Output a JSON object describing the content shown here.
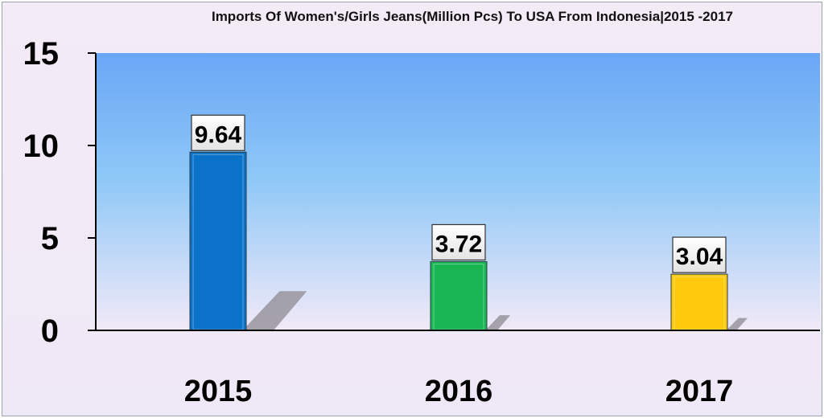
{
  "chart_data": {
    "type": "bar",
    "title": "Imports Of Women's/Girls Jeans(Million Pcs) To USA From Indonesia|2015 -2017",
    "xlabel": "",
    "ylabel": "",
    "categories": [
      "2015",
      "2016",
      "2017"
    ],
    "values": [
      9.64,
      3.72,
      3.04
    ],
    "value_labels": [
      "9.64",
      "3.72",
      "3.04"
    ],
    "ylim": [
      0,
      15
    ],
    "yticks": [
      0,
      5,
      10,
      15
    ],
    "ytick_labels": [
      "0",
      "5",
      "10",
      "15"
    ],
    "grid": false,
    "legend": "none",
    "bar_colors": [
      "#0a72c8",
      "#19b552",
      "#ffc90e"
    ],
    "plot_background": [
      "#6aa6f6",
      "#8ec8f7",
      "#f2eaf7"
    ]
  }
}
